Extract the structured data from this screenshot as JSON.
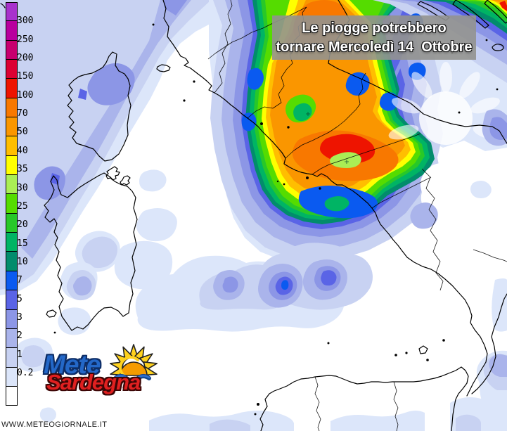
{
  "title_banner": {
    "line1": "Le piogge potrebbero",
    "line2": "tornare Mercoledì 14  Ottobre"
  },
  "legend": {
    "tick_labels": [
      "300",
      "250",
      "200",
      "150",
      "100",
      "70",
      "50",
      "40",
      "35",
      "30",
      "25",
      "20",
      "15",
      "10",
      "7",
      "5",
      "3",
      "2",
      "1",
      "0.2"
    ],
    "box_colors": [
      "#A832CC",
      "#B8009E",
      "#C8006E",
      "#DC0032",
      "#EE1400",
      "#F87800",
      "#FA9600",
      "#FFBE00",
      "#FFFF00",
      "#AAEE55",
      "#55DC00",
      "#28C828",
      "#00B464",
      "#028C6C",
      "#0A5AF0",
      "#5A64E6",
      "#8C96E6",
      "#AAB4EB",
      "#C8D2F2",
      "#DCE6FA",
      "#FFFFFF"
    ]
  },
  "logo": {
    "word_top": "Mete",
    "word_bottom": "Sardegna",
    "icon": "sun-icon",
    "color_top": "#2468C8",
    "color_bottom": "#E02020"
  },
  "watermark": "WWW.METEOGIORNALE.IT"
}
